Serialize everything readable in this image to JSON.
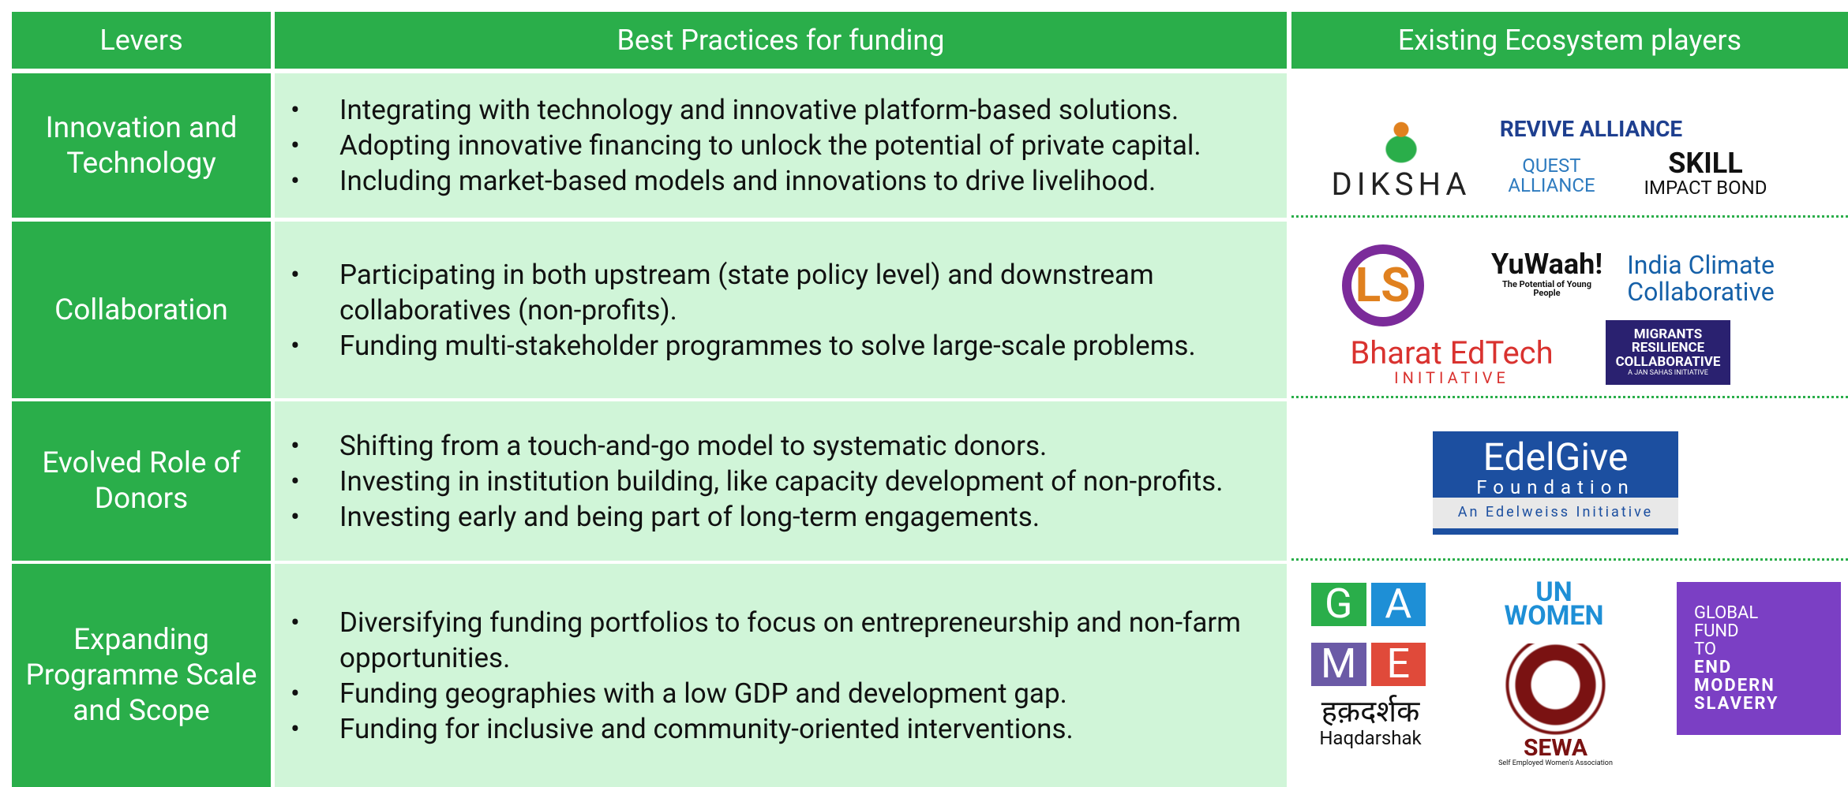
{
  "table": {
    "headers": [
      "Levers",
      "Best Practices for funding",
      "Existing Ecosystem players"
    ],
    "rows": [
      {
        "lever": "Innovation and Technology",
        "practices": [
          "Integrating with technology and innovative platform-based solutions.",
          "Adopting innovative financing to unlock the potential of private capital.",
          "Including market-based models and innovations to drive livelihood."
        ],
        "logos": [
          [
            "DIKSHA"
          ],
          [
            "REVIVE ALLIANCE"
          ],
          [
            "QUEST",
            "ALLIANCE"
          ],
          [
            "SKILL",
            "IMPACT BOND"
          ]
        ]
      },
      {
        "lever": "Collaboration",
        "practices": [
          "Participating in both upstream (state policy level) and downstream collaboratives (non-profits).",
          "Funding multi-stakeholder programmes to solve large-scale problems."
        ],
        "logos": [
          [
            "LS"
          ],
          [
            "YuWaah!",
            "The Potential of Young People"
          ],
          [
            "India Climate",
            "Collaborative"
          ],
          [
            "Bharat EdTech",
            "INITIATIVE"
          ],
          [
            "MIGRANTS",
            "RESILIENCE",
            "COLLABORATIVE",
            "A JAN SAHAS INITIATIVE"
          ]
        ]
      },
      {
        "lever": "Evolved Role of Donors",
        "practices": [
          "Shifting from a touch-and-go model to systematic donors.",
          "Investing in institution building, like capacity development of non-profits.",
          "Investing early and being part of long-term engagements."
        ],
        "logos": [
          [
            "EdelGive",
            "Foundation",
            "An Edelweiss Initiative"
          ]
        ]
      },
      {
        "lever": "Expanding Programme Scale and Scope",
        "practices": [
          "Diversifying funding portfolios to focus on entrepreneurship and non-farm opportunities.",
          "Funding geographies with a low GDP and development gap.",
          "Funding for inclusive and community-oriented interventions."
        ],
        "logos": [
          [
            "G",
            "A",
            "M",
            "E"
          ],
          [
            "हक़दर्शक",
            "Haqdarshak"
          ],
          [
            "UN",
            "WOMEN"
          ],
          [
            "SEWA",
            "Self Employed Women's Association"
          ],
          [
            "GLOBAL",
            "FUND",
            "TO",
            "END",
            "MODERN",
            "SLAVERY"
          ]
        ]
      }
    ]
  }
}
